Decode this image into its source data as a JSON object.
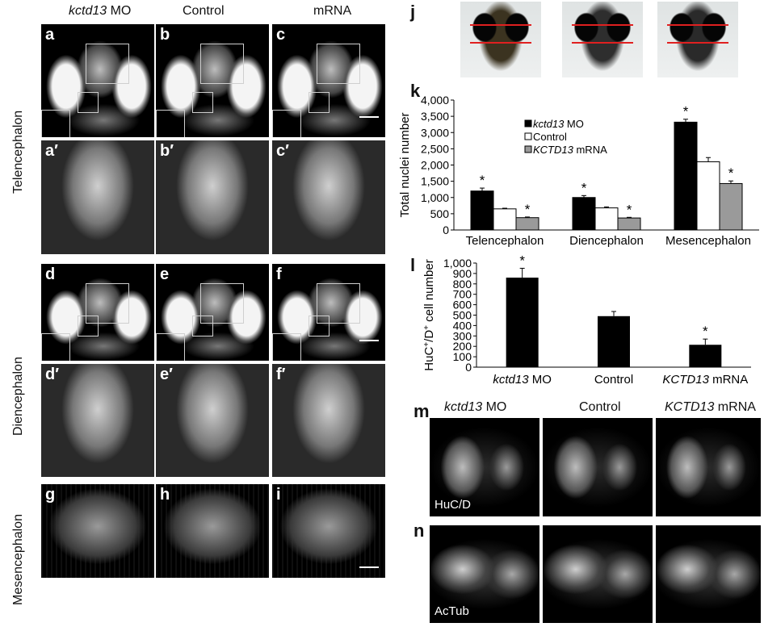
{
  "columns": {
    "left_mo_italic": "kctd13",
    "left_mo_suffix": " MO",
    "control": "Control",
    "mrna": "mRNA"
  },
  "rows": {
    "telencephalon": "Telencephalon",
    "diencephalon": "Diencephalon",
    "mesencephalon": "Mesencephalon"
  },
  "panel_labels": [
    "a",
    "b",
    "c",
    "a′",
    "b′",
    "c′",
    "d",
    "e",
    "f",
    "d′",
    "e′",
    "f′",
    "g",
    "h",
    "i"
  ],
  "figure_letters": {
    "j": "j",
    "k": "k",
    "l": "l",
    "m": "m",
    "n": "n"
  },
  "immuno": {
    "header_mo_italic": "kctd13",
    "header_mo_suffix": " MO",
    "header_control": "Control",
    "header_mrna_italic": "KCTD13",
    "header_mrna_suffix": " mRNA",
    "m_stain": "HuC/D",
    "n_stain": "AcTub"
  },
  "chart_data": [
    {
      "id": "k",
      "type": "bar",
      "ylabel": "Total nuclei number",
      "ylim": [
        0,
        4000
      ],
      "yticks": [
        "0",
        "500",
        "1,000",
        "1,500",
        "2,000",
        "2,500",
        "3,000",
        "3,500",
        "4,000"
      ],
      "categories": [
        "Telencephalon",
        "Diencephalon",
        "Mesencephalon"
      ],
      "series": [
        {
          "name_italic": "kctd13",
          "name_suffix": " MO",
          "color": "#000000",
          "values": [
            1200,
            1000,
            3320
          ],
          "errors": [
            90,
            60,
            90
          ],
          "star": [
            true,
            true,
            true
          ]
        },
        {
          "name_italic": "",
          "name_suffix": "Control",
          "color": "#ffffff",
          "values": [
            650,
            680,
            2100
          ],
          "errors": [
            20,
            30,
            130
          ],
          "star": [
            false,
            false,
            false
          ]
        },
        {
          "name_italic": "KCTD13",
          "name_suffix": " mRNA",
          "color": "#9a9a9a",
          "values": [
            380,
            370,
            1430
          ],
          "errors": [
            20,
            20,
            80
          ],
          "star": [
            true,
            true,
            true
          ]
        }
      ],
      "star_symbol": "*"
    },
    {
      "id": "l",
      "type": "bar",
      "ylabel_main": "HuC",
      "ylabel_sup1": "+",
      "ylabel_mid": "/D",
      "ylabel_sup2": "+",
      "ylabel_tail": " cell number",
      "ylim": [
        0,
        1000
      ],
      "yticks": [
        "0",
        "100",
        "200",
        "300",
        "400",
        "500",
        "600",
        "700",
        "800",
        "900",
        "1,000"
      ],
      "categories_italic": [
        "kctd13",
        "",
        "KCTD13"
      ],
      "categories_suffix": [
        " MO",
        "Control",
        " mRNA"
      ],
      "values": [
        860,
        490,
        215
      ],
      "errors": [
        90,
        45,
        55
      ],
      "star": [
        true,
        false,
        true
      ],
      "color": "#000000",
      "star_symbol": "*"
    }
  ]
}
